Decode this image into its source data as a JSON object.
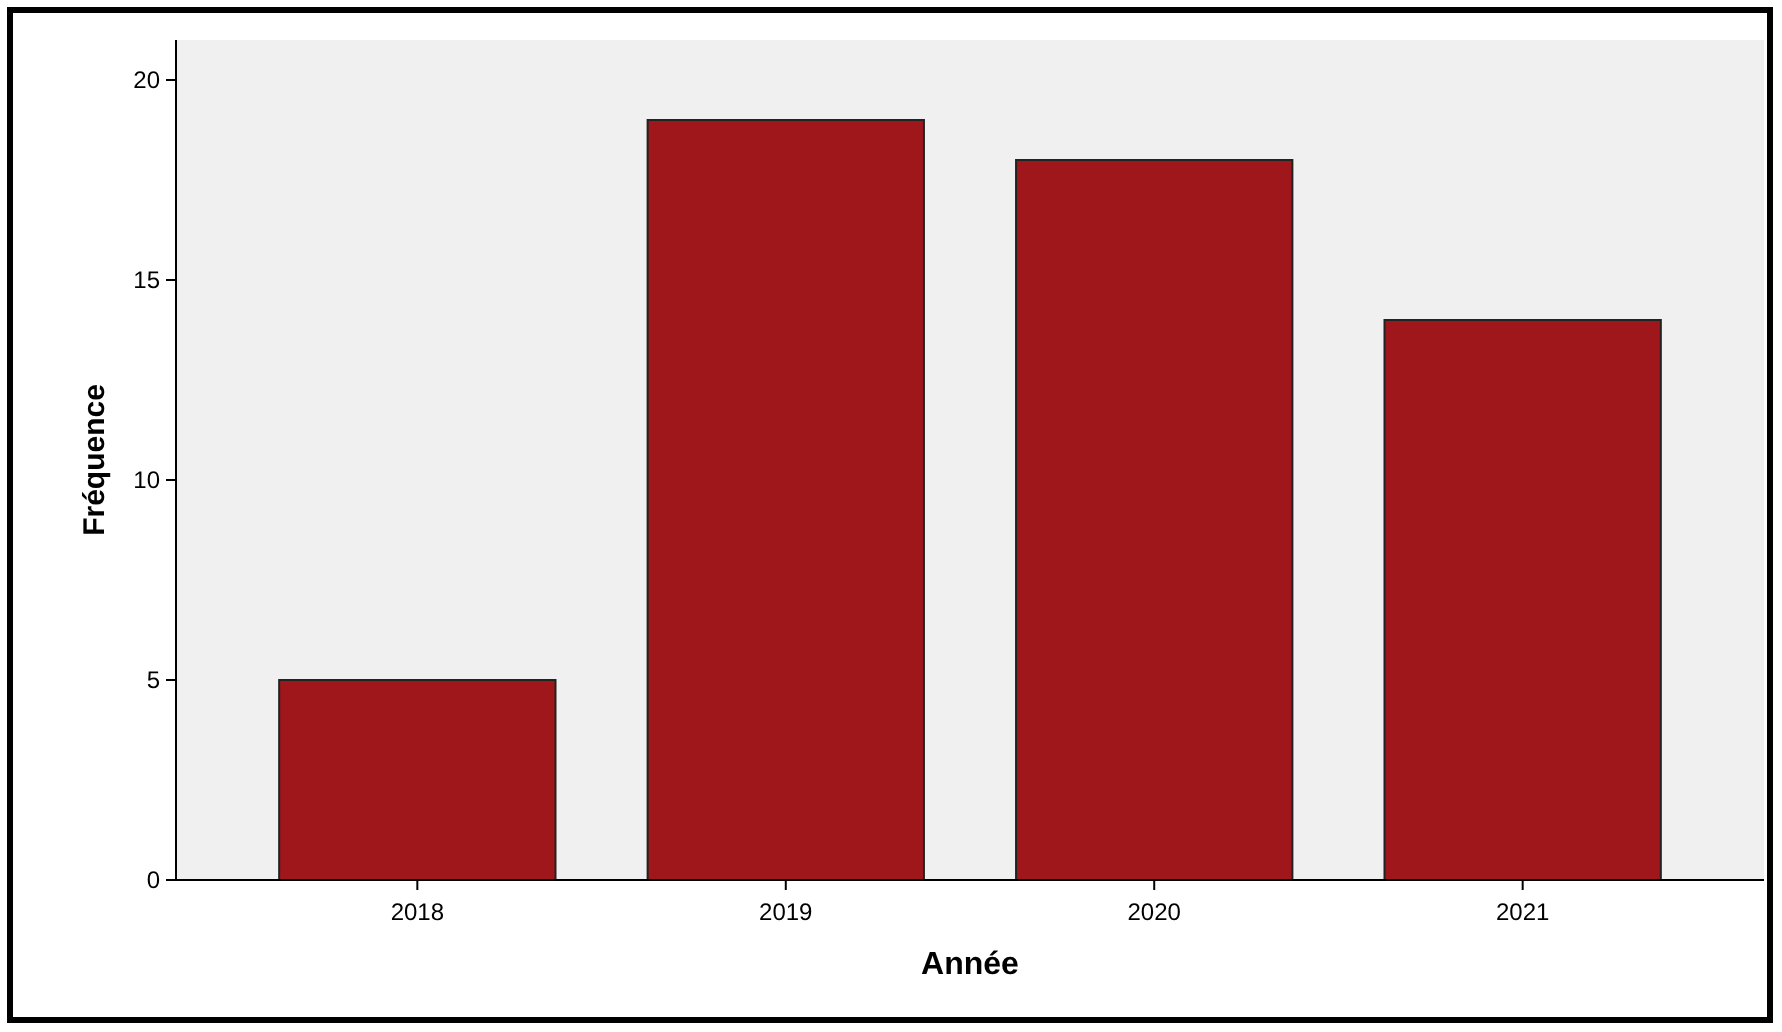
{
  "chart_data": {
    "type": "bar",
    "xlabel": "Année",
    "ylabel": "Fréquence",
    "categories": [
      "2018",
      "2019",
      "2020",
      "2021"
    ],
    "values": [
      5,
      19,
      18,
      14
    ],
    "color": "#a0171b",
    "ylim": [
      0,
      21
    ],
    "yticks": [
      0,
      5,
      10,
      15,
      20
    ],
    "grid": false
  }
}
